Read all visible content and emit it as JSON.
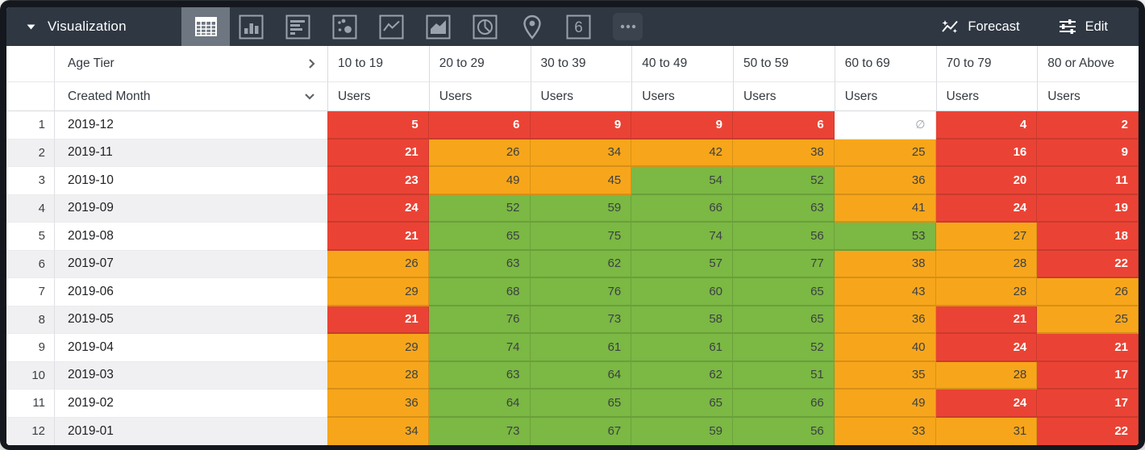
{
  "toolbar": {
    "title": "Visualization",
    "viz_types": [
      {
        "name": "table",
        "selected": true
      },
      {
        "name": "column-chart",
        "selected": false
      },
      {
        "name": "bar-chart",
        "selected": false
      },
      {
        "name": "scatter-plot",
        "selected": false
      },
      {
        "name": "line-chart",
        "selected": false
      },
      {
        "name": "area-chart",
        "selected": false
      },
      {
        "name": "pie-chart",
        "selected": false
      },
      {
        "name": "map",
        "selected": false
      },
      {
        "name": "single-value",
        "selected": false
      },
      {
        "name": "more-options",
        "selected": false
      }
    ],
    "single_value_glyph": "6",
    "forecast_label": "Forecast",
    "edit_label": "Edit"
  },
  "table": {
    "pivot_field": "Age Tier",
    "dimension_field": "Created Month",
    "measure_label": "Users",
    "columns": [
      "10 to 19",
      "20 to 29",
      "30 to 39",
      "40 to 49",
      "50 to 59",
      "60 to 69",
      "70 to 79",
      "80 or Above"
    ],
    "null_symbol": "∅",
    "rows": [
      {
        "index": 1,
        "month": "2019-12",
        "values": [
          5,
          6,
          9,
          9,
          6,
          null,
          4,
          2
        ],
        "colors": [
          "red",
          "red",
          "red",
          "red",
          "red",
          "null",
          "red",
          "red"
        ]
      },
      {
        "index": 2,
        "month": "2019-11",
        "values": [
          21,
          26,
          34,
          42,
          38,
          25,
          16,
          9
        ],
        "colors": [
          "red",
          "orange",
          "orange",
          "orange",
          "orange",
          "orange",
          "red",
          "red"
        ]
      },
      {
        "index": 3,
        "month": "2019-10",
        "values": [
          23,
          49,
          45,
          54,
          52,
          36,
          20,
          11
        ],
        "colors": [
          "red",
          "orange",
          "orange",
          "green",
          "green",
          "orange",
          "red",
          "red"
        ]
      },
      {
        "index": 4,
        "month": "2019-09",
        "values": [
          24,
          52,
          59,
          66,
          63,
          41,
          24,
          19
        ],
        "colors": [
          "red",
          "green",
          "green",
          "green",
          "green",
          "orange",
          "red",
          "red"
        ]
      },
      {
        "index": 5,
        "month": "2019-08",
        "values": [
          21,
          65,
          75,
          74,
          56,
          53,
          27,
          18
        ],
        "colors": [
          "red",
          "green",
          "green",
          "green",
          "green",
          "green",
          "orange",
          "red"
        ]
      },
      {
        "index": 6,
        "month": "2019-07",
        "values": [
          26,
          63,
          62,
          57,
          77,
          38,
          28,
          22
        ],
        "colors": [
          "orange",
          "green",
          "green",
          "green",
          "green",
          "orange",
          "orange",
          "red"
        ]
      },
      {
        "index": 7,
        "month": "2019-06",
        "values": [
          29,
          68,
          76,
          60,
          65,
          43,
          28,
          26
        ],
        "colors": [
          "orange",
          "green",
          "green",
          "green",
          "green",
          "orange",
          "orange",
          "orange"
        ]
      },
      {
        "index": 8,
        "month": "2019-05",
        "values": [
          21,
          76,
          73,
          58,
          65,
          36,
          21,
          25
        ],
        "colors": [
          "red",
          "green",
          "green",
          "green",
          "green",
          "orange",
          "red",
          "orange"
        ]
      },
      {
        "index": 9,
        "month": "2019-04",
        "values": [
          29,
          74,
          61,
          61,
          52,
          40,
          24,
          21
        ],
        "colors": [
          "orange",
          "green",
          "green",
          "green",
          "green",
          "orange",
          "red",
          "red"
        ]
      },
      {
        "index": 10,
        "month": "2019-03",
        "values": [
          28,
          63,
          64,
          62,
          51,
          35,
          28,
          17
        ],
        "colors": [
          "orange",
          "green",
          "green",
          "green",
          "green",
          "orange",
          "orange",
          "red"
        ]
      },
      {
        "index": 11,
        "month": "2019-02",
        "values": [
          36,
          64,
          65,
          65,
          66,
          49,
          24,
          17
        ],
        "colors": [
          "orange",
          "green",
          "green",
          "green",
          "green",
          "orange",
          "red",
          "red"
        ]
      },
      {
        "index": 12,
        "month": "2019-01",
        "values": [
          34,
          73,
          67,
          59,
          56,
          33,
          31,
          22
        ],
        "colors": [
          "orange",
          "green",
          "green",
          "green",
          "green",
          "orange",
          "orange",
          "red"
        ]
      }
    ]
  },
  "colors": {
    "red": "#ea4335",
    "orange": "#f7a61b",
    "green": "#7bb844",
    "toolbar_bg": "#2e3742",
    "selected_tile": "#6d7681",
    "icon_stroke": "#9aa2ad"
  }
}
